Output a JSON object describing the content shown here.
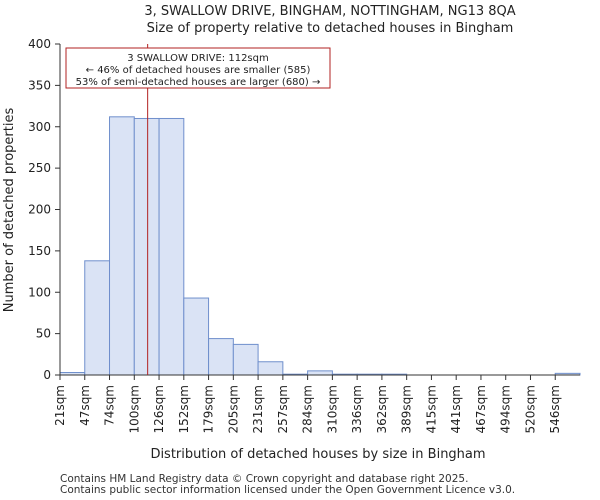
{
  "chart_data": {
    "type": "bar",
    "title_lines": [
      "3, SWALLOW DRIVE, BINGHAM, NOTTINGHAM, NG13 8QA",
      "Size of property relative to detached houses in Bingham"
    ],
    "xlabel": "Distribution of detached houses by size in Bingham",
    "ylabel": "Number of detached properties",
    "categories": [
      "21sqm",
      "47sqm",
      "74sqm",
      "100sqm",
      "126sqm",
      "152sqm",
      "179sqm",
      "205sqm",
      "231sqm",
      "257sqm",
      "284sqm",
      "310sqm",
      "336sqm",
      "362sqm",
      "389sqm",
      "415sqm",
      "441sqm",
      "467sqm",
      "494sqm",
      "520sqm",
      "546sqm"
    ],
    "values": [
      3,
      138,
      312,
      310,
      310,
      93,
      44,
      37,
      16,
      1,
      5,
      1,
      1,
      1,
      0,
      0,
      0,
      0,
      0,
      0,
      2
    ],
    "ylim": [
      0,
      400
    ],
    "yticks": [
      0,
      50,
      100,
      150,
      200,
      250,
      300,
      350,
      400
    ],
    "marker_value_sqm": 112,
    "marker_bin_position": 3.54,
    "annotation_lines": [
      "3 SWALLOW DRIVE: 112sqm",
      "← 46% of detached houses are smaller (585)",
      "53% of semi-detached houses are larger (680) →"
    ],
    "bar_fill": "#dae3f5",
    "bar_edge": "#6f8fcc",
    "marker_color": "#b22222",
    "grid": false,
    "legend": "none"
  },
  "footer": {
    "line1": "Contains HM Land Registry data © Crown copyright and database right 2025.",
    "line2": "Contains public sector information licensed under the Open Government Licence v3.0."
  }
}
